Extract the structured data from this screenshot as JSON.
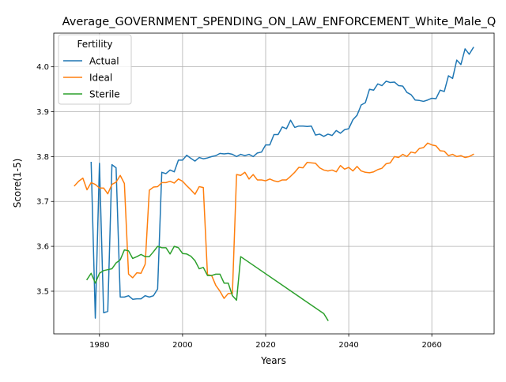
{
  "chart_data": {
    "type": "line",
    "title": "Average_GOVERNMENT_SPENDING_ON_LAW_ENFORCEMENT_White_Male_Q",
    "xlabel": "Years",
    "ylabel": "Score(1-5)",
    "xlim": [
      1969,
      2075
    ],
    "ylim": [
      3.405,
      4.075
    ],
    "xticks": [
      1980,
      2000,
      2020,
      2040,
      2060
    ],
    "yticks": [
      3.5,
      3.6,
      3.7,
      3.8,
      3.9,
      4.0
    ],
    "xtick_labels": [
      "1980",
      "2000",
      "2020",
      "2040",
      "2060"
    ],
    "ytick_labels": [
      "3.5",
      "3.6",
      "3.7",
      "3.8",
      "3.9",
      "4.0"
    ],
    "grid": true,
    "legend": {
      "title": "Fertility",
      "placement": "top-left"
    },
    "series": [
      {
        "name": "Actual",
        "color": "#1f77b4",
        "x": [
          1978,
          1979,
          1980,
          1981,
          1982,
          1983,
          1984,
          1985,
          1986,
          1987,
          1988,
          1989,
          1990,
          1991,
          1992,
          1993,
          1994,
          1995,
          1996,
          1997,
          1998,
          1999,
          2000,
          2001,
          2002,
          2003,
          2004,
          2005,
          2006,
          2007,
          2008,
          2009,
          2010,
          2011,
          2012,
          2013,
          2014,
          2015,
          2016,
          2017,
          2018,
          2019,
          2020,
          2021,
          2022,
          2023,
          2024,
          2025,
          2026,
          2027,
          2028,
          2029,
          2030,
          2031,
          2032,
          2033,
          2034,
          2035,
          2036,
          2037,
          2038,
          2039,
          2040,
          2041,
          2042,
          2043,
          2044,
          2045,
          2046,
          2047,
          2048,
          2049,
          2050,
          2051,
          2052,
          2053,
          2054,
          2055,
          2056,
          2057,
          2058,
          2059,
          2060,
          2061,
          2062,
          2063,
          2064,
          2065,
          2066,
          2067,
          2068,
          2069,
          2070
        ],
        "y": [
          3.787,
          3.44,
          3.785,
          3.452,
          3.455,
          3.782,
          3.775,
          3.487,
          3.487,
          3.49,
          3.482,
          3.483,
          3.483,
          3.49,
          3.487,
          3.49,
          3.505,
          3.765,
          3.762,
          3.77,
          3.766,
          3.792,
          3.792,
          3.803,
          3.796,
          3.79,
          3.798,
          3.795,
          3.797,
          3.8,
          3.802,
          3.807,
          3.806,
          3.807,
          3.805,
          3.8,
          3.805,
          3.802,
          3.805,
          3.8,
          3.808,
          3.81,
          3.826,
          3.826,
          3.849,
          3.849,
          3.866,
          3.862,
          3.881,
          3.865,
          3.868,
          3.868,
          3.867,
          3.868,
          3.848,
          3.85,
          3.845,
          3.85,
          3.847,
          3.858,
          3.852,
          3.86,
          3.862,
          3.882,
          3.892,
          3.915,
          3.92,
          3.95,
          3.948,
          3.962,
          3.958,
          3.968,
          3.965,
          3.966,
          3.958,
          3.957,
          3.943,
          3.938,
          3.926,
          3.925,
          3.923,
          3.926,
          3.93,
          3.929,
          3.948,
          3.945,
          3.98,
          3.974,
          4.015,
          4.005,
          4.04,
          4.028,
          4.043
        ]
      },
      {
        "name": "Ideal",
        "color": "#ff7f0e",
        "x": [
          1974,
          1975,
          1976,
          1977,
          1978,
          1979,
          1980,
          1981,
          1982,
          1983,
          1984,
          1985,
          1986,
          1987,
          1988,
          1989,
          1990,
          1991,
          1992,
          1993,
          1994,
          1995,
          1996,
          1997,
          1998,
          1999,
          2000,
          2001,
          2002,
          2003,
          2004,
          2005,
          2006,
          2007,
          2008,
          2009,
          2010,
          2011,
          2012,
          2013,
          2014,
          2015,
          2016,
          2017,
          2018,
          2019,
          2020,
          2021,
          2022,
          2023,
          2024,
          2025,
          2026,
          2027,
          2028,
          2029,
          2030,
          2031,
          2032,
          2033,
          2034,
          2035,
          2036,
          2037,
          2038,
          2039,
          2040,
          2041,
          2042,
          2043,
          2044,
          2045,
          2046,
          2047,
          2048,
          2049,
          2050,
          2051,
          2052,
          2053,
          2054,
          2055,
          2056,
          2057,
          2058,
          2059,
          2060,
          2061,
          2062,
          2063,
          2064,
          2065,
          2066,
          2067,
          2068,
          2069,
          2070
        ],
        "y": [
          3.735,
          3.745,
          3.752,
          3.726,
          3.742,
          3.738,
          3.73,
          3.73,
          3.717,
          3.738,
          3.743,
          3.758,
          3.74,
          3.538,
          3.53,
          3.541,
          3.54,
          3.56,
          3.725,
          3.732,
          3.733,
          3.742,
          3.742,
          3.745,
          3.741,
          3.75,
          3.745,
          3.735,
          3.726,
          3.716,
          3.733,
          3.731,
          3.537,
          3.535,
          3.513,
          3.5,
          3.484,
          3.495,
          3.495,
          3.76,
          3.758,
          3.765,
          3.75,
          3.76,
          3.748,
          3.748,
          3.746,
          3.75,
          3.746,
          3.744,
          3.748,
          3.748,
          3.756,
          3.765,
          3.776,
          3.775,
          3.787,
          3.786,
          3.785,
          3.775,
          3.77,
          3.768,
          3.77,
          3.766,
          3.78,
          3.772,
          3.776,
          3.768,
          3.778,
          3.768,
          3.765,
          3.764,
          3.766,
          3.771,
          3.774,
          3.784,
          3.786,
          3.8,
          3.798,
          3.805,
          3.8,
          3.81,
          3.808,
          3.818,
          3.82,
          3.83,
          3.826,
          3.824,
          3.813,
          3.812,
          3.802,
          3.805,
          3.8,
          3.802,
          3.798,
          3.8,
          3.805
        ]
      },
      {
        "name": "Sterile",
        "color": "#2ca02c",
        "x": [
          1977,
          1978,
          1979,
          1980,
          1981,
          1982,
          1983,
          1984,
          1985,
          1986,
          1987,
          1988,
          1989,
          1990,
          1991,
          1992,
          1993,
          1994,
          1995,
          1996,
          1997,
          1998,
          1999,
          2000,
          2001,
          2002,
          2003,
          2004,
          2005,
          2006,
          2007,
          2008,
          2009,
          2010,
          2011,
          2012,
          2013,
          2014,
          2034,
          2035
        ],
        "y": [
          3.526,
          3.54,
          3.518,
          3.54,
          3.546,
          3.548,
          3.55,
          3.563,
          3.57,
          3.592,
          3.59,
          3.573,
          3.577,
          3.582,
          3.577,
          3.577,
          3.588,
          3.6,
          3.597,
          3.597,
          3.583,
          3.6,
          3.597,
          3.584,
          3.583,
          3.578,
          3.568,
          3.55,
          3.553,
          3.535,
          3.535,
          3.538,
          3.538,
          3.518,
          3.518,
          3.49,
          3.48,
          3.577,
          3.45,
          3.435
        ]
      }
    ]
  }
}
